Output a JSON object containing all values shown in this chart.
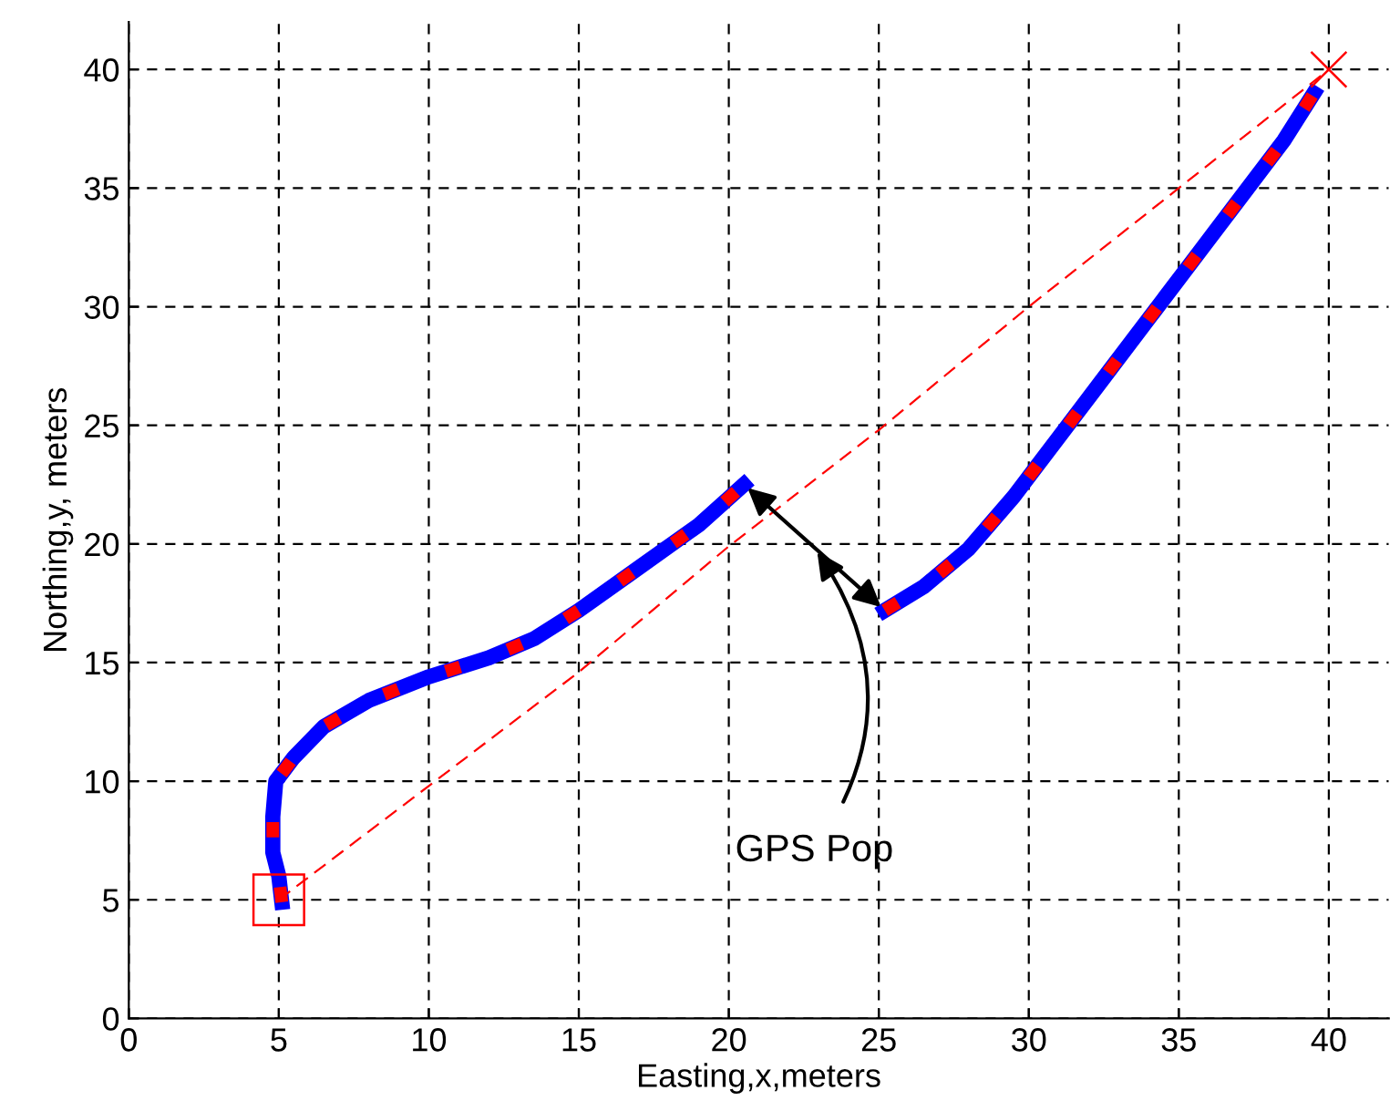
{
  "chart_data": {
    "type": "line",
    "xlabel": "Easting,x,meters",
    "ylabel": "Northing,y, meters",
    "xlim": [
      0,
      42
    ],
    "ylim": [
      0,
      42
    ],
    "xticks": [
      0,
      5,
      10,
      15,
      20,
      25,
      30,
      35,
      40
    ],
    "yticks": [
      0,
      5,
      10,
      15,
      20,
      25,
      30,
      35,
      40
    ],
    "grid": true,
    "annotations": [
      "GPS Pop"
    ],
    "series": [
      {
        "color": "#0000ff",
        "line_style": "solid",
        "marker": "none",
        "x": [
          5.1,
          5.0,
          4.8,
          4.8,
          4.9,
          5.5,
          6.5,
          8,
          10,
          12,
          13.5,
          15,
          17,
          19,
          20.5,
          null,
          25.2,
          26.5,
          28,
          29.5,
          31,
          32.5,
          34,
          35.5,
          37,
          38.5,
          39.5
        ],
        "values": [
          4.9,
          6,
          7,
          8.5,
          10,
          11,
          12.3,
          13.4,
          14.4,
          15.2,
          16,
          17.2,
          19,
          20.8,
          22.5,
          null,
          17.2,
          18.2,
          19.8,
          22,
          24.5,
          27,
          29.5,
          32,
          34.5,
          37,
          39
        ]
      },
      {
        "color": "#ff0000",
        "line_style": "dashed",
        "marker": "none",
        "x": [
          5.1,
          5.0,
          4.8,
          4.8,
          4.9,
          5.5,
          6.5,
          8,
          10,
          12,
          13.5,
          15,
          17,
          19,
          20.5,
          null,
          25.2,
          26.5,
          28,
          29.5,
          31,
          32.5,
          34,
          35.5,
          37,
          38.5,
          39.5
        ],
        "values": [
          4.9,
          6,
          7,
          8.5,
          10,
          11,
          12.3,
          13.4,
          14.4,
          15.2,
          16,
          17.2,
          19,
          20.8,
          22.5,
          null,
          17.2,
          18.2,
          19.8,
          22,
          24.5,
          27,
          29.5,
          32,
          34.5,
          37,
          39
        ]
      },
      {
        "color": "#ff0000",
        "line_style": "dashed",
        "marker": "none",
        "x": [
          5,
          10,
          15,
          20,
          25,
          30,
          35,
          40
        ],
        "values": [
          5,
          9.8,
          14.6,
          19.9,
          24.8,
          30,
          35,
          40
        ]
      },
      {
        "type": "scatter",
        "color": "#ff0000",
        "marker": "square",
        "x": [
          5
        ],
        "values": [
          5
        ]
      },
      {
        "type": "scatter",
        "color": "#ff0000",
        "marker": "cross",
        "x": [
          40
        ],
        "values": [
          40
        ]
      }
    ]
  }
}
